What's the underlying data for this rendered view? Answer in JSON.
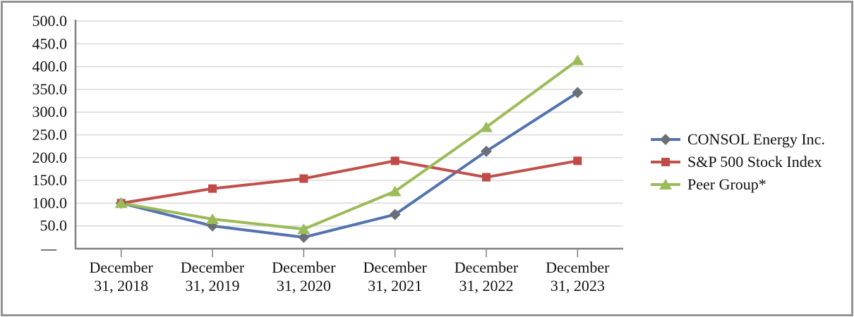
{
  "chart_data": {
    "type": "line",
    "title": "",
    "categories": [
      "December 31, 2018",
      "December 31, 2019",
      "December 31, 2020",
      "December 31, 2021",
      "December 31, 2022",
      "December 31, 2023"
    ],
    "series": [
      {
        "name": "CONSOL Energy Inc.",
        "marker": "diamond",
        "line_color": "#5572B0",
        "marker_color": "#6B6F78",
        "values": [
          100.0,
          50.0,
          25.0,
          75.0,
          214.0,
          343.0
        ]
      },
      {
        "name": "S&P 500 Stock Index",
        "marker": "square",
        "line_color": "#C0504D",
        "marker_color": "#BE4B48",
        "values": [
          100.0,
          132.0,
          154.0,
          193.0,
          157.0,
          193.0
        ]
      },
      {
        "name": "Peer Group*",
        "marker": "triangle",
        "line_color": "#9BBB59",
        "marker_color": "#9BBB59",
        "values": [
          100.0,
          65.0,
          43.0,
          126.0,
          267.0,
          414.0
        ]
      }
    ],
    "ylim": [
      0,
      500
    ],
    "ytick_step": 50,
    "ytick_labels": [
      "—",
      "50.0",
      "100.0",
      "150.0",
      "200.0",
      "250.0",
      "300.0",
      "350.0",
      "400.0",
      "450.0",
      "500.0"
    ],
    "grid": true,
    "legend_position": "right"
  },
  "colors": {
    "axis_line": "#808080",
    "gridline": "#D9D9D9",
    "frame_border": "#949494",
    "label_text": "#111111"
  }
}
